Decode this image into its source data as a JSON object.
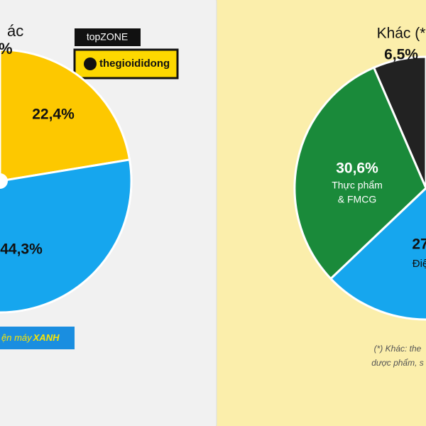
{
  "chart_data": [
    {
      "type": "pie",
      "annotations": [
        "ác",
        "%"
      ],
      "categories": [
        null,
        null
      ],
      "values": [
        22.4,
        44.3
      ],
      "value_labels": [
        "22,4%",
        "44,3%"
      ],
      "colors": [
        "#fdc800",
        "#16a6ee"
      ],
      "logos": [
        "topZONE",
        "thegioididong",
        "ện máy",
        "XANH"
      ]
    },
    {
      "type": "pie",
      "categories": [
        "Khác (*",
        [
          "Thực phẩm",
          "& FMCG"
        ],
        "Điệ"
      ],
      "values": [
        6.5,
        30.6,
        27
      ],
      "value_labels": [
        "6,5%",
        "30,6%",
        "27"
      ],
      "colors": [
        "#222222",
        "#1a8a3a",
        "#16a6ee"
      ],
      "footnote": [
        "(*) Khác: the",
        "dược phẩm, s"
      ]
    }
  ]
}
